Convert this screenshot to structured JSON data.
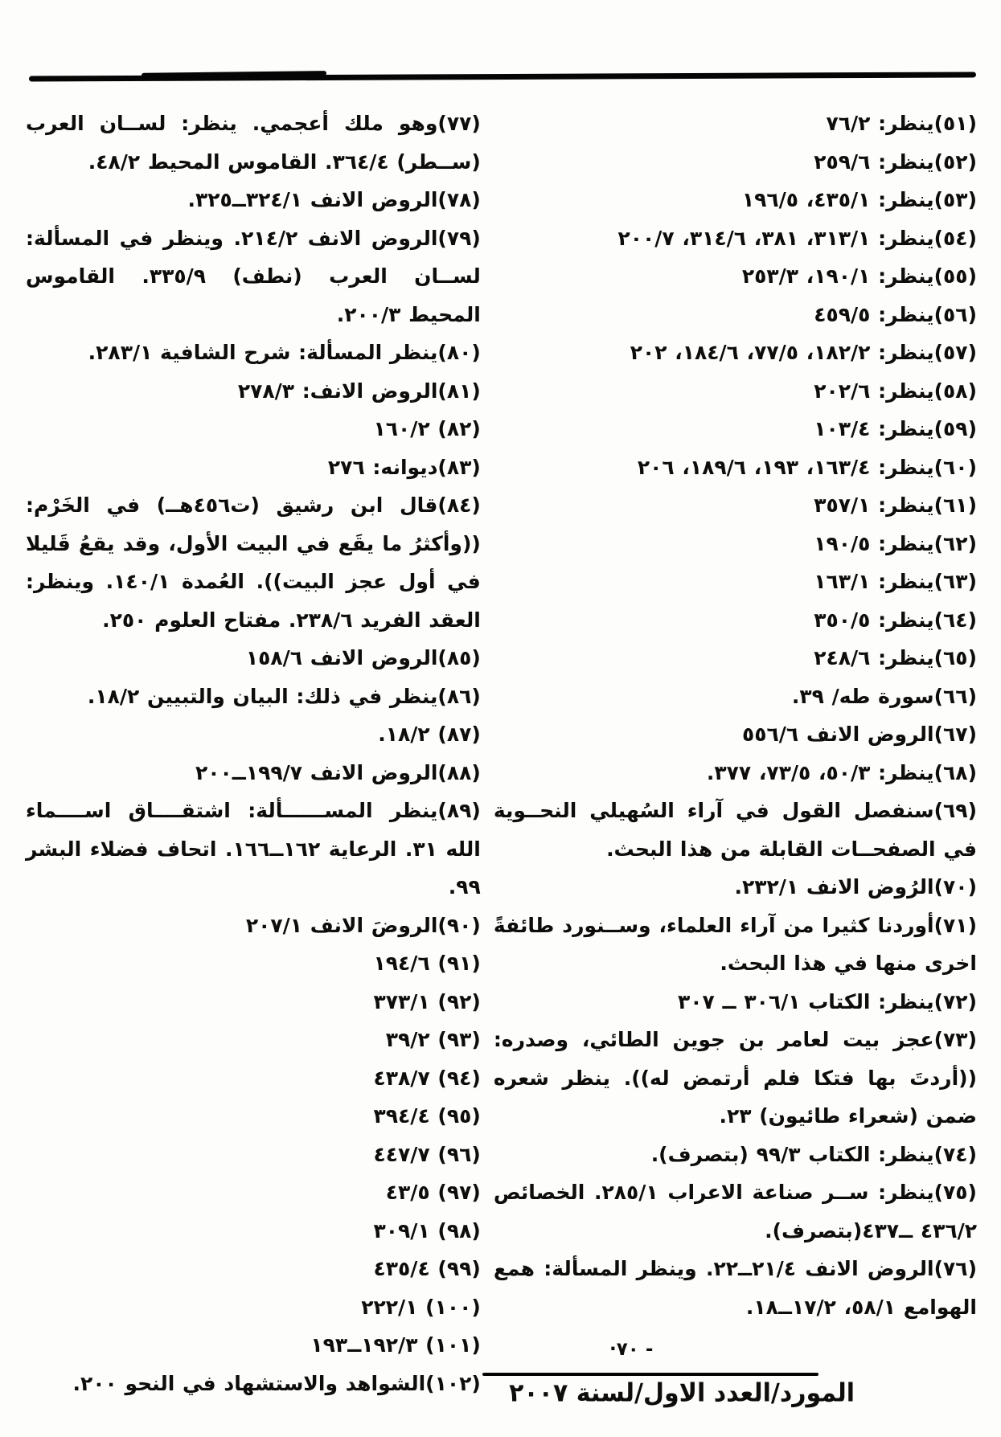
{
  "notes_right": [
    "(٥١)ينظر: ٧٦/٢",
    "(٥٢)ينظر: ٢٥٩/٦",
    "(٥٣)ينظر: ٤٣٥/١، ١٩٦/٥",
    "(٥٤)ينظر: ٣١٣/١، ٣٨١، ٣١٤/٦، ٢٠٠/٧",
    "(٥٥)ينظر: ١٩٠/١، ٢٥٣/٣",
    "(٥٦)ينظر: ٤٥٩/٥",
    "(٥٧)ينظر: ١٨٢/٢، ٧٧/٥، ١٨٤/٦، ٢٠٢",
    "(٥٨)ينظر: ٢٠٢/٦",
    "(٥٩)ينظر: ١٠٣/٤",
    "(٦٠)ينظر: ١٦٣/٤، ١٩٣، ١٨٩/٦، ٢٠٦",
    "(٦١)ينظر: ٣٥٧/١",
    "(٦٢)ينظر: ١٩٠/٥",
    "(٦٣)ينظر: ١٦٣/١",
    "(٦٤)ينظر: ٣٥٠/٥",
    "(٦٥)ينظر: ٢٤٨/٦",
    "(٦٦)سورة طه/ ٣٩.",
    "(٦٧)الروض الانف ٥٥٦/٦",
    "(٦٨)ينظر: ٥٠/٣، ٧٣/٥، ٣٧٧.",
    "(٦٩)سنفصل القول في آراء السُهيلي النحــوية في الصفحــات القابلة من هذا البحث.",
    "(٧٠)الرُوض الانف ٢٣٢/١.",
    "(٧١)أوردنا كثيرا من آراء العلماء، وســنورد طائفةً اخرى منها في هذا البحث.",
    "(٧٢)ينظر: الكتاب ٣٠٦/١ ــ ٣٠٧",
    "(٧٣)عجز بيت لعامر بن جوين الطائي، وصدره: ((أردتَ بها فتكا فلم أرتمض له)). ينظر شعره ضمن (شعراء طائيون) ٢٣.",
    "(٧٤)ينظر: الكتاب ٩٩/٣ (بتصرف).",
    "(٧٥)ينظر: ســر صناعة الاعراب ٢٨٥/١. الخصائص ٤٣٦/٢ ــ٤٣٧(بتصرف).",
    "(٧٦)الروض الانف ٢١/٤ــ٢٢. وينظر المسألة: همع الهوامع ٥٨/١، ١٧/٢ــ١٨."
  ],
  "notes_left": [
    "(٧٧)وهو ملك أعجمي. ينظر: لســان العرب (ســطر) ٣٦٤/٤. القاموس المحيط ٤٨/٢.",
    "(٧٨)الروض الانف ٣٢٤/١ــ٣٢٥.",
    "(٧٩)الروض الانف ٢١٤/٢. وينظر في المسألة: لســان العرب (نطف) ٣٣٥/٩. القاموس المحيط ٢٠٠/٣.",
    "(٨٠)ينظر المسألة: شرح الشافية ٢٨٣/١.",
    "(٨١)الروض الانف: ٢٧٨/٣",
    "(٨٢) ١٦٠/٢",
    "(٨٣)ديوانه: ٢٧٦",
    "(٨٤)قال ابن رشيق (ت٤٥٦هــ) في الخَرْم: ((وأكثرُ ما يقَع في البيت الأول، وقد يقعُ قَليلا في أول عجز البيت)). العُمدة ١٤٠/١. وينظر: العقد الفريد ٢٣٨/٦. مفتاح العلوم ٢٥٠.",
    "(٨٥)الروض الانف ١٥٨/٦",
    "(٨٦)ينظر في ذلك: البيان والتبيين ١٨/٢.",
    "(٨٧) ١٨/٢.",
    "(٨٨)الروض الانف ١٩٩/٧ــ٢٠٠",
    "(٨٩)ينظر المســــــألة: اشتقــــاق اســــماء الله ٣١. الرعاية ١٦٢ــ١٦٦. اتحاف فضلاء البشر ٩٩.",
    "(٩٠)الروضَ الانف ٢٠٧/١",
    "(٩١) ١٩٤/٦",
    "(٩٢) ٣٧٣/١",
    "(٩٣) ٣٩/٢",
    "(٩٤) ٤٣٨/٧",
    "(٩٥) ٣٩٤/٤",
    "(٩٦) ٤٤٧/٧",
    "(٩٧) ٤٣/٥",
    "(٩٨) ٣٠٩/١",
    "(٩٩) ٤٣٥/٤",
    "(١٠٠) ٢٢٢/١",
    "(١٠١) ١٩٢/٣ــ١٩٣",
    "(١٠٢)الشواهد والاستشهاد في النحو ٢٠٠."
  ],
  "footer": {
    "page_number": "·٧٠ -",
    "journal_line": "المورد/العدد الاول/لسنة ٢٠٠٧"
  }
}
